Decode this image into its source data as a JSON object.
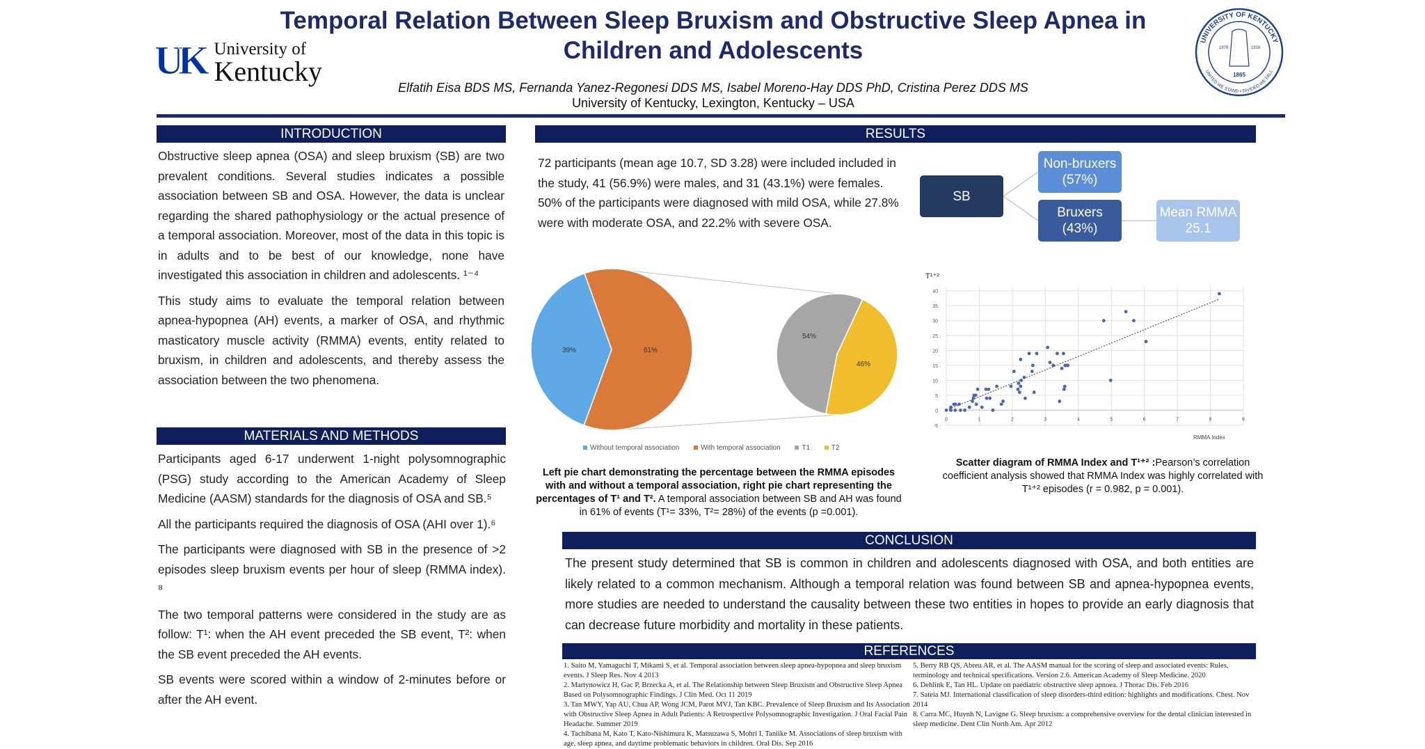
{
  "header": {
    "title_line1": "Temporal Relation Between Sleep Bruxism and Obstructive Sleep Apnea in",
    "title_line2": "Children and Adolescents",
    "authors": "Elfatih Eisa BDS MS, Fernanda Yanez-Regonesi DDS MS, Isabel Moreno-Hay DDS  PhD, Cristina Perez DDS MS",
    "affiliation": "University of Kentucky, Lexington, Kentucky – USA",
    "logo": {
      "mark": "UK",
      "line1": "University of",
      "line2": "Kentucky"
    },
    "seal": {
      "top": "UNIVERSITY OF KENTUCKY",
      "bottom": "UNITED WE STAND • DIVIDED WE FALL",
      "left_year": "1878",
      "right_year": "1916",
      "founded": "1865"
    }
  },
  "colors": {
    "navy": "#0f1f5c",
    "title": "#1f2a6b",
    "pie_blue": "#5ea8e6",
    "pie_orange": "#d9793a",
    "pie_gray": "#a6a6a6",
    "pie_yellow": "#f0bd2d",
    "scatter": "#4a64b0"
  },
  "introduction": {
    "heading": "INTRODUCTION",
    "p1": "Obstructive sleep apnea (OSA) and sleep bruxism (SB) are two prevalent conditions. Several studies indicates a possible association between SB and OSA. However, the data is unclear regarding the shared pathophysiology or the actual presence of a temporal association. Moreover, most of the data in this topic is in adults and to be best of our knowledge, none have investigated this association in children and adolescents. ¹⁻⁴",
    "p2": "This study aims to evaluate the temporal relation between apnea-hypopnea (AH) events, a marker of OSA, and rhythmic masticatory muscle activity (RMMA) events, entity related to bruxism, in children and adolescents, and thereby assess the association between the two phenomena."
  },
  "methods": {
    "heading": "MATERIALS AND METHODS",
    "p1": "Participants aged 6-17 underwent 1-night polysomnographic (PSG) study according to the American Academy of Sleep Medicine (AASM)  standards for the diagnosis of OSA and SB.⁵",
    "p2": "All the participants required the diagnosis of OSA (AHI over 1).⁶",
    "p3": "The participants were diagnosed with SB in the presence of >2 episodes sleep bruxism events per hour of sleep (RMMA index). ⁸",
    "p4": "The two temporal patterns were considered in the study are as follow: T¹: when the AH event preceded the SB event, T²: when the SB event preceded the AH events.",
    "p5": "SB events were scored within a window of 2-minutes before or after the AH event."
  },
  "results": {
    "heading": "RESULTS",
    "p1": "72 participants (mean age 10.7, SD 3.28) were included included in the study, 41 (56.9%) were males, and 31 (43.1%) were females.",
    "p2": "50% of the participants were diagnosed with mild OSA, while 27.8% were with moderate OSA, and 22.2% with severe OSA.",
    "diagram": {
      "root": "SB",
      "non_bruxers": "Non-bruxers",
      "non_bruxers_pct": "(57%)",
      "bruxers": "Bruxers",
      "bruxers_pct": "(43%)",
      "mean_rmma": "Mean RMMA",
      "mean_rmma_value": "25.1"
    },
    "pie_caption_bold": "Left pie chart demonstrating the percentage between the RMMA episodes with and without a temporal association, right pie chart representing the percentages of T¹ and T².",
    "pie_caption_rest": " A temporal association between SB and AH was found in 61% of events (T¹= 33%, T²= 28%) of the events (p =0.001).",
    "scatter_caption_bold": "Scatter diagram of RMMA Index and T¹⁺² :",
    "scatter_caption_rest": "Pearson’s correlation coefficient analysis showed that RMMA Index was highly correlated with T¹⁺² episodes (r = 0.982, p = 0.001)."
  },
  "chart_data": [
    {
      "type": "pie",
      "categories": [
        "Without temporal association",
        "With temporal association"
      ],
      "values": [
        39,
        61
      ],
      "labels": [
        "39%",
        "61%"
      ],
      "colors": [
        "#5ea8e6",
        "#d9793a"
      ],
      "legend": "bottom"
    },
    {
      "type": "pie",
      "categories": [
        "T1",
        "T2"
      ],
      "values": [
        54,
        46
      ],
      "labels": [
        "54%",
        "46%"
      ],
      "colors": [
        "#a6a6a6",
        "#f0bd2d"
      ],
      "legend": "bottom"
    },
    {
      "type": "scatter",
      "ylabel": "T¹⁺²",
      "xlabel": "RMMA Index",
      "xlim": [
        0,
        9
      ],
      "ylim": [
        -5,
        40
      ],
      "xticks": [
        "0",
        "1",
        "2",
        "3",
        "4",
        "5",
        "6",
        "7",
        "8",
        "9"
      ],
      "yticks": [
        "-5",
        "0",
        "5",
        "10",
        "15",
        "20",
        "25",
        "30",
        "35",
        "40"
      ],
      "grid": true,
      "trendline": {
        "type": "linear",
        "style": "dotted",
        "from": [
          0,
          0
        ],
        "to": [
          8.27,
          37.2
        ]
      },
      "points": [
        [
          0,
          0
        ],
        [
          0.14,
          0
        ],
        [
          0.14,
          1
        ],
        [
          0.23,
          2
        ],
        [
          0.28,
          2
        ],
        [
          0.27,
          0
        ],
        [
          0.39,
          2
        ],
        [
          0.43,
          0
        ],
        [
          0.56,
          0
        ],
        [
          0.7,
          1
        ],
        [
          0.79,
          3
        ],
        [
          0.82,
          4
        ],
        [
          0.84,
          5
        ],
        [
          0.89,
          5
        ],
        [
          0.91,
          2
        ],
        [
          0.95,
          7
        ],
        [
          1.08,
          1
        ],
        [
          1.2,
          7
        ],
        [
          1.22,
          4
        ],
        [
          1.28,
          7
        ],
        [
          1.32,
          4
        ],
        [
          1.41,
          0
        ],
        [
          1.53,
          8
        ],
        [
          1.67,
          2
        ],
        [
          1.72,
          3
        ],
        [
          1.96,
          8
        ],
        [
          2.05,
          13
        ],
        [
          2.17,
          7
        ],
        [
          2.19,
          9
        ],
        [
          2.22,
          6
        ],
        [
          2.25,
          17
        ],
        [
          2.25,
          8
        ],
        [
          2.27,
          10
        ],
        [
          2.36,
          11
        ],
        [
          2.39,
          4
        ],
        [
          2.51,
          19
        ],
        [
          2.6,
          13
        ],
        [
          2.62,
          15
        ],
        [
          2.66,
          6
        ],
        [
          2.74,
          19
        ],
        [
          3.07,
          21
        ],
        [
          3.14,
          16
        ],
        [
          3.24,
          15
        ],
        [
          3.36,
          19
        ],
        [
          3.43,
          3
        ],
        [
          3.5,
          14
        ],
        [
          3.55,
          19
        ],
        [
          3.57,
          7
        ],
        [
          3.59,
          8
        ],
        [
          3.6,
          15
        ],
        [
          3.63,
          15
        ],
        [
          3.68,
          15
        ],
        [
          4.77,
          30
        ],
        [
          4.98,
          10
        ],
        [
          5.44,
          33
        ],
        [
          5.68,
          30
        ],
        [
          6.05,
          23
        ],
        [
          8.27,
          39
        ]
      ]
    }
  ],
  "conclusion": {
    "heading": "CONCLUSION",
    "text": "The present study determined that SB is common in children and adolescents diagnosed with OSA, and both entities are likely related to a common mechanism.  Although a temporal relation was found between SB and apnea-hypopnea events, more studies are needed to understand the causality between these two entities in hopes to provide an early diagnosis that can decrease future morbidity and mortality in these patients."
  },
  "references": {
    "heading": "REFERENCES",
    "left": [
      "1. Saito M, Yamaguchi T, Mikami S, et al. Temporal association between sleep apnea-hypopnea and sleep bruxism events. J Sleep Res. Nov 4 2013",
      "2. Martynowicz H, Gac P, Brzecka A, et al. The Relationship between Sleep Bruxism and Obstructive Sleep Apnea Based on Polysomnographic Findings. J Clin Med. Oct 11 2019",
      "3. Tan MWY, Yap AU, Chua AP, Wong JCM, Parot MVJ, Tan KBC. Prevalence of Sleep Bruxism and Its Association with Obstructive Sleep Apnea in Adult Patients: A Retrospective Polysomnographic Investigation. J Oral Facial Pain Headache. Summer 2019",
      "4. Tachibana M, Kato T, Kato-Nishimura K, Matsuzawa S, Mohri I, Taniike M. Associations of sleep bruxism with age, sleep apnea, and daytime problematic behaviors in children. Oral Dis. Sep 2016"
    ],
    "right": [
      "5. Berry RB QS, Abreu AR, et al. The AASM manual for the scoring of sleep and associated events: Rules, terminology and technical specifications. Version 2.6. American Academy of Sleep Medicine. 2020",
      "6. Dehlink E, Tan HL. Update on paediatric obstructive sleep apnoea. J Thorac Dis. Feb 2016",
      "7. Sateia MJ. International classification of sleep disorders-third edition: highlights and modifications. Chest. Nov 2014",
      "8. Carra MC, Huynh N, Lavigne G. Sleep bruxism: a comprehensive overview for the dental clinician interested in sleep medicine. Dent Clin North Am. Apr 2012"
    ]
  }
}
